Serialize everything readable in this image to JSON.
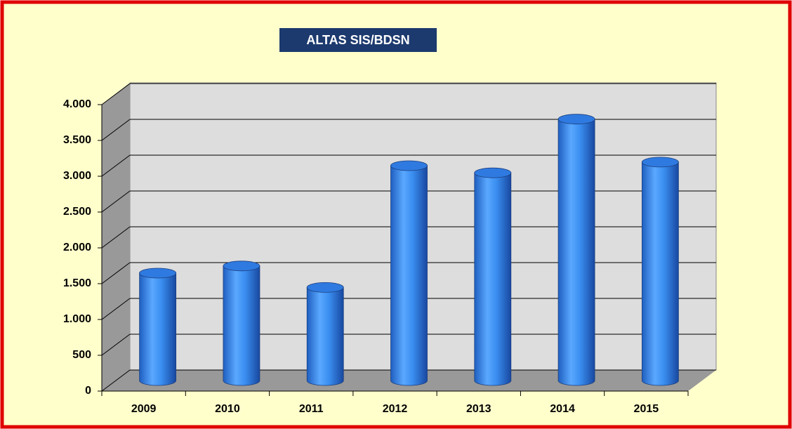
{
  "chart_data": {
    "type": "bar",
    "title": "ALTAS  SIS/BDSN",
    "categories": [
      "2009",
      "2010",
      "2011",
      "2012",
      "2013",
      "2014",
      "2015"
    ],
    "values": [
      1500,
      1600,
      1300,
      3000,
      2900,
      3650,
      3050
    ],
    "color": "#3a8ef0",
    "ylim": [
      0,
      4000
    ],
    "yticks": [
      0,
      500,
      {
        "value": 1000,
        "label": "1.000"
      },
      {
        "value": 1500,
        "label": "1.500"
      },
      {
        "value": 2000,
        "label": "2.000"
      },
      {
        "value": 2500,
        "label": "2.500"
      },
      {
        "value": 3000,
        "label": "3.000"
      },
      {
        "value": 3500,
        "label": "3.500"
      },
      {
        "value": 4000,
        "label": "4.000"
      }
    ],
    "grid": true
  }
}
